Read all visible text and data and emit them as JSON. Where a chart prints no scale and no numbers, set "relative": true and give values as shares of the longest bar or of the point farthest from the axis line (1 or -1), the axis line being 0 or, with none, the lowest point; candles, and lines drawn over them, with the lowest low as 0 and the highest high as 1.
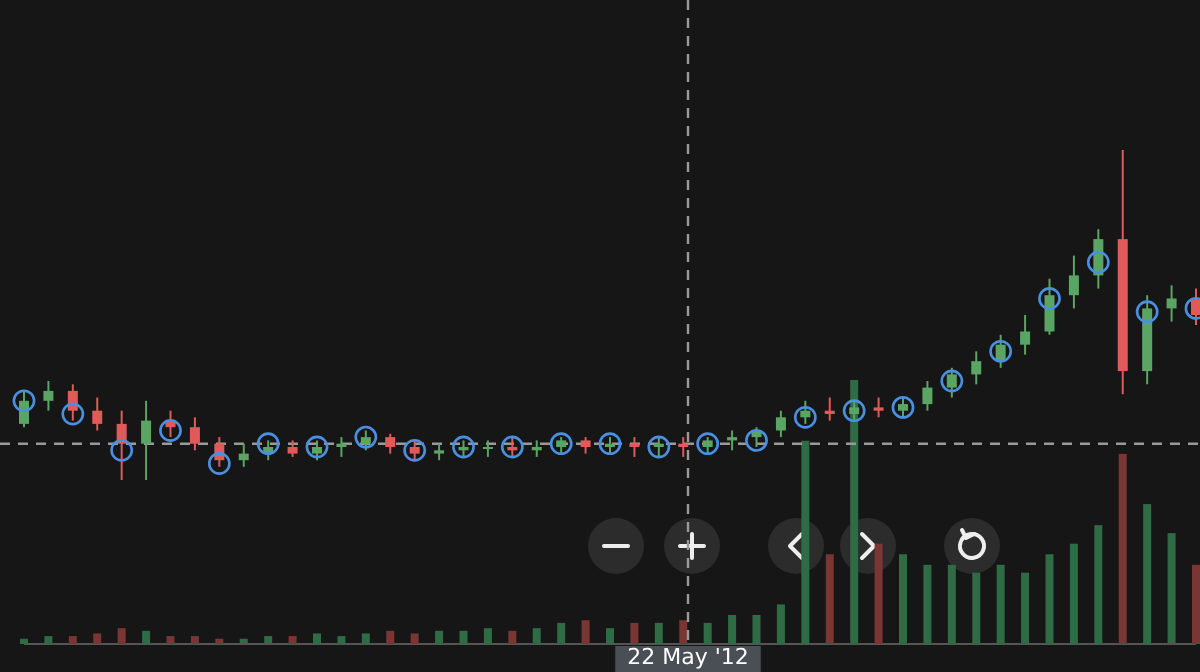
{
  "chart_data": [
    {
      "type": "candlestick",
      "relative": true,
      "categories": [
        null,
        null,
        null,
        null,
        null,
        null,
        null,
        null,
        null,
        null,
        null,
        null,
        null,
        null,
        null,
        null,
        null,
        null,
        null,
        null,
        null,
        null,
        null,
        null,
        null,
        null,
        null,
        null,
        null,
        null,
        null,
        null,
        null,
        null,
        null,
        null,
        null,
        null,
        null,
        null,
        null,
        null,
        null,
        null,
        null,
        null,
        null,
        null,
        null
      ],
      "ohlc": [
        [
          0.17,
          0.27,
          0.16,
          0.24
        ],
        [
          0.24,
          0.3,
          0.21,
          0.27
        ],
        [
          0.27,
          0.29,
          0.18,
          0.21
        ],
        [
          0.21,
          0.25,
          0.15,
          0.17
        ],
        [
          0.17,
          0.21,
          0,
          0.11
        ],
        [
          0.11,
          0.24,
          0,
          0.18
        ],
        [
          0.18,
          0.21,
          0.13,
          0.16
        ],
        [
          0.16,
          0.19,
          0.09,
          0.11
        ],
        [
          0.11,
          0.13,
          0.04,
          0.06
        ],
        [
          0.06,
          0.11,
          0.04,
          0.08
        ],
        [
          0.08,
          0.12,
          0.06,
          0.1
        ],
        [
          0.1,
          0.12,
          0.07,
          0.08
        ],
        [
          0.08,
          0.12,
          0.06,
          0.1
        ],
        [
          0.1,
          0.13,
          0.07,
          0.11
        ],
        [
          0.11,
          0.15,
          0.09,
          0.13
        ],
        [
          0.13,
          0.14,
          0.08,
          0.1
        ],
        [
          0.1,
          0.12,
          0.06,
          0.08
        ],
        [
          0.08,
          0.11,
          0.06,
          0.09
        ],
        [
          0.09,
          0.12,
          0.07,
          0.1
        ],
        [
          0.1,
          0.12,
          0.07,
          0.1
        ],
        [
          0.1,
          0.13,
          0.07,
          0.09
        ],
        [
          0.09,
          0.12,
          0.07,
          0.1
        ],
        [
          0.1,
          0.13,
          0.08,
          0.12
        ],
        [
          0.12,
          0.13,
          0.08,
          0.1
        ],
        [
          0.1,
          0.13,
          0.08,
          0.11
        ],
        [
          0.11,
          0.13,
          0.07,
          0.1
        ],
        [
          0.1,
          0.13,
          0.07,
          0.11
        ],
        [
          0.11,
          0.13,
          0.07,
          0.1
        ],
        [
          0.1,
          0.13,
          0.08,
          0.12
        ],
        [
          0.12,
          0.15,
          0.09,
          0.13
        ],
        [
          0.13,
          0.16,
          0.1,
          0.15
        ],
        [
          0.15,
          0.21,
          0.13,
          0.19
        ],
        [
          0.19,
          0.24,
          0.17,
          0.21
        ],
        [
          0.21,
          0.25,
          0.18,
          0.2
        ],
        [
          0.2,
          0.24,
          0.18,
          0.22
        ],
        [
          0.22,
          0.25,
          0.19,
          0.21
        ],
        [
          0.21,
          0.25,
          0.19,
          0.23
        ],
        [
          0.23,
          0.3,
          0.21,
          0.28
        ],
        [
          0.28,
          0.34,
          0.25,
          0.32
        ],
        [
          0.32,
          0.39,
          0.29,
          0.36
        ],
        [
          0.36,
          0.44,
          0.34,
          0.41
        ],
        [
          0.41,
          0.5,
          0.38,
          0.45
        ],
        [
          0.45,
          0.61,
          0.44,
          0.56
        ],
        [
          0.56,
          0.68,
          0.52,
          0.62
        ],
        [
          0.62,
          0.76,
          0.58,
          0.73
        ],
        [
          0.73,
          1,
          0.26,
          0.33
        ],
        [
          0.33,
          0.56,
          0.29,
          0.52
        ],
        [
          0.52,
          0.59,
          0.48,
          0.55
        ],
        [
          0.55,
          0.58,
          0.47,
          0.5
        ]
      ],
      "colors": [
        "#5aa464",
        "#5aa464",
        "#e05a5a",
        "#e05a5a",
        "#e05a5a",
        "#5aa464",
        "#e05a5a",
        "#e05a5a",
        "#e05a5a",
        "#5aa464",
        "#5aa464",
        "#e05a5a",
        "#5aa464",
        "#5aa464",
        "#5aa464",
        "#e05a5a",
        "#e05a5a",
        "#5aa464",
        "#5aa464",
        "#5aa464",
        "#e05a5a",
        "#5aa464",
        "#5aa464",
        "#e05a5a",
        "#5aa464",
        "#e05a5a",
        "#5aa464",
        "#e05a5a",
        "#5aa464",
        "#5aa464",
        "#5aa464",
        "#5aa464",
        "#5aa464",
        "#e05a5a",
        "#5aa464",
        "#e05a5a",
        "#5aa464",
        "#5aa464",
        "#5aa464",
        "#5aa464",
        "#5aa464",
        "#5aa464",
        "#5aa464",
        "#5aa464",
        "#5aa464",
        "#e05a5a",
        "#5aa464",
        "#5aa464",
        "#e05a5a"
      ],
      "series": [
        {
          "type": "scatter",
          "marker": "circle",
          "color": "#4a90e2",
          "values": [
            0.24,
            null,
            0.2,
            null,
            0.09,
            null,
            0.15,
            null,
            0.05,
            null,
            0.11,
            null,
            0.1,
            null,
            0.13,
            null,
            0.09,
            null,
            0.1,
            null,
            0.1,
            null,
            0.11,
            null,
            0.11,
            null,
            0.1,
            null,
            0.11,
            null,
            0.12,
            null,
            0.19,
            null,
            0.21,
            null,
            0.22,
            null,
            0.3,
            null,
            0.39,
            null,
            0.55,
            null,
            0.66,
            null,
            0.51,
            null,
            0.52
          ]
        }
      ],
      "ref_lines": [
        {
          "axis": "y",
          "value": 0.11,
          "line_style": "dashed",
          "color": "#9a9a9a"
        }
      ],
      "annotations": [
        "22 May '12"
      ]
    },
    {
      "type": "bar",
      "relative": true,
      "categories": [
        null,
        null,
        null,
        null,
        null,
        null,
        null,
        null,
        null,
        null,
        null,
        null,
        null,
        null,
        null,
        null,
        null,
        null,
        null,
        null,
        null,
        null,
        null,
        null,
        null,
        null,
        null,
        null,
        null,
        null,
        null,
        null,
        null,
        null,
        null,
        null,
        null,
        null,
        null,
        null,
        null,
        null,
        null,
        null,
        null,
        null,
        null,
        null,
        null
      ],
      "values": [
        0.02,
        0.03,
        0.03,
        0.04,
        0.06,
        0.05,
        0.03,
        0.03,
        0.02,
        0.02,
        0.03,
        0.03,
        0.04,
        0.03,
        0.04,
        0.05,
        0.04,
        0.05,
        0.05,
        0.06,
        0.05,
        0.06,
        0.08,
        0.09,
        0.06,
        0.08,
        0.08,
        0.09,
        0.08,
        0.11,
        0.11,
        0.15,
        0.77,
        0.34,
        1,
        0.38,
        0.34,
        0.3,
        0.3,
        0.27,
        0.3,
        0.27,
        0.34,
        0.38,
        0.45,
        0.72,
        0.53,
        0.42,
        0.3
      ],
      "colors": [
        "#2f6b45",
        "#2f6b45",
        "#7a3535",
        "#7a3535",
        "#7a3535",
        "#2f6b45",
        "#7a3535",
        "#7a3535",
        "#7a3535",
        "#2f6b45",
        "#2f6b45",
        "#7a3535",
        "#2f6b45",
        "#2f6b45",
        "#2f6b45",
        "#7a3535",
        "#7a3535",
        "#2f6b45",
        "#2f6b45",
        "#2f6b45",
        "#7a3535",
        "#2f6b45",
        "#2f6b45",
        "#7a3535",
        "#2f6b45",
        "#7a3535",
        "#2f6b45",
        "#7a3535",
        "#2f6b45",
        "#2f6b45",
        "#2f6b45",
        "#2f6b45",
        "#2f6b45",
        "#7a3535",
        "#2f6b45",
        "#7a3535",
        "#2f6b45",
        "#2f6b45",
        "#2f6b45",
        "#2f6b45",
        "#2f6b45",
        "#2f6b45",
        "#2f6b45",
        "#2f6b45",
        "#2f6b45",
        "#7a3535",
        "#2f6b45",
        "#2f6b45",
        "#7a3535"
      ]
    }
  ]
}
